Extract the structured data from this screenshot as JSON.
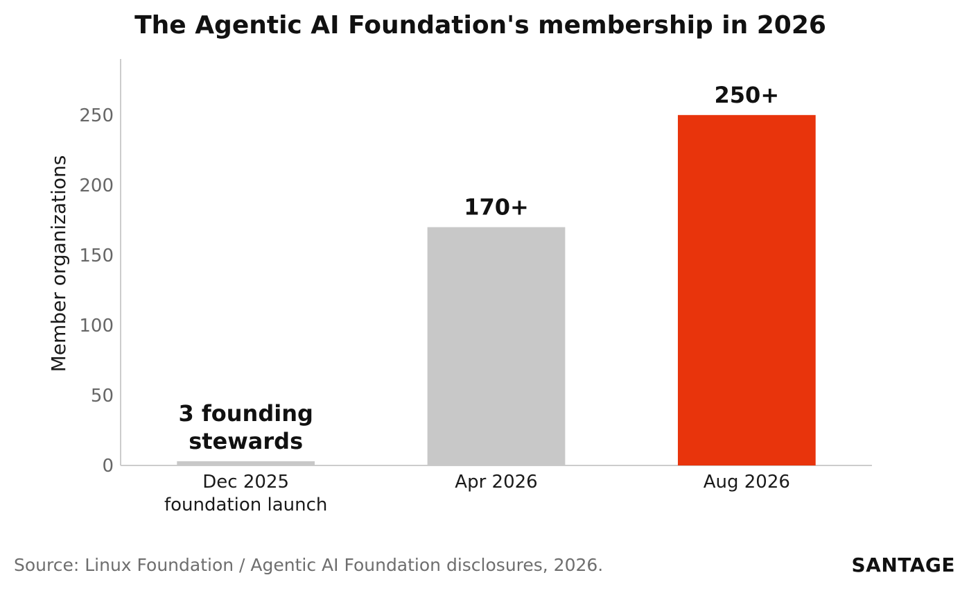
{
  "chart_data": {
    "type": "bar",
    "title": "The Agentic AI Foundation's membership in 2026",
    "ylabel": "Member organizations",
    "xlabel": "",
    "ylim": [
      0,
      290
    ],
    "yticks": [
      "0",
      "50",
      "100",
      "150",
      "200",
      "250"
    ],
    "grid": false,
    "categories": [
      [
        "Dec 2025",
        "foundation launch"
      ],
      [
        "Apr 2026"
      ],
      [
        "Aug 2026"
      ]
    ],
    "values": [
      3,
      170,
      250
    ],
    "data_labels": [
      [
        "3 founding",
        "stewards"
      ],
      [
        "170+"
      ],
      [
        "250+"
      ]
    ],
    "colors": [
      "#c8c8c8",
      "#c8c8c8",
      "#e8340c"
    ]
  },
  "footer": {
    "source": "Source: Linux Foundation / Agentic AI Foundation disclosures, 2026.",
    "brand": "SANTAGE"
  }
}
